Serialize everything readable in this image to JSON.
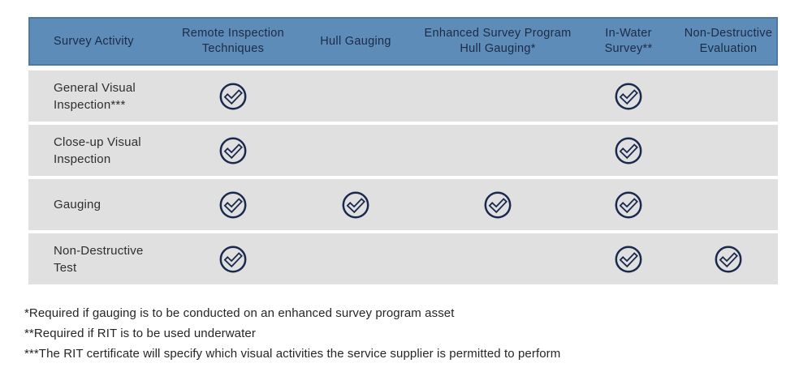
{
  "colors": {
    "header_bg": "#5e8cb9",
    "header_border": "#4b79a4",
    "header_text": "#1c2b45",
    "row_bg": "#e0e0e0",
    "check": "#1a2a4c",
    "body_text": "#2e2e2e",
    "footnote_text": "#262626"
  },
  "table": {
    "columns": [
      {
        "label": "Survey Activity"
      },
      {
        "label": "Remote Inspection\nTechniques"
      },
      {
        "label": "Hull Gauging"
      },
      {
        "label": "Enhanced Survey Program\nHull Gauging*"
      },
      {
        "label": "In-Water\nSurvey**"
      },
      {
        "label": "Non-Destructive\nEvaluation"
      }
    ],
    "rows": [
      {
        "label": "General Visual\nInspection***",
        "checks": [
          true,
          false,
          false,
          true,
          false
        ]
      },
      {
        "label": "Close-up Visual\nInspection",
        "checks": [
          true,
          false,
          false,
          true,
          false
        ]
      },
      {
        "label": "Gauging",
        "checks": [
          true,
          true,
          true,
          true,
          false
        ]
      },
      {
        "label": "Non-Destructive\nTest",
        "checks": [
          true,
          false,
          false,
          true,
          true
        ]
      }
    ]
  },
  "footnotes": [
    "*Required if gauging is to be conducted on an enhanced survey program asset",
    "**Required if RIT is to be used underwater",
    "***The RIT certificate will specify which visual activities the service supplier is permitted to perform"
  ],
  "icons": {
    "check": "check-circle-icon"
  }
}
